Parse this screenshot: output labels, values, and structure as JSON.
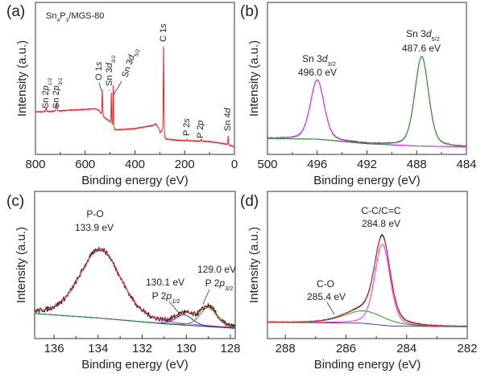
{
  "chart_data": [
    {
      "panel": "(a)",
      "type": "line",
      "inset_title": [
        {
          "t": "Sn"
        },
        {
          "t": "4",
          "s": 1
        },
        {
          "t": "P"
        },
        {
          "t": "3",
          "s": 1
        },
        {
          "t": "/MGS-80"
        }
      ],
      "xlabel": "Binding energy (eV)",
      "ylabel": "Intensity (a.u.)",
      "xlim": [
        800,
        0
      ],
      "xticks": [
        800,
        600,
        400,
        200,
        0
      ],
      "minor_step": 100,
      "grid": false,
      "series": [
        {
          "color": "#ff2020",
          "baseline": [
            [
              800,
              0.28
            ],
            [
              770,
              0.28
            ],
            [
              560,
              0.3
            ],
            [
              545,
              0.29
            ],
            [
              530,
              0.25
            ],
            [
              505,
              0.22
            ],
            [
              495,
              0.2
            ],
            [
              483,
              0.16
            ],
            [
              400,
              0.17
            ],
            [
              330,
              0.19
            ],
            [
              315,
              0.2
            ],
            [
              305,
              0.17
            ],
            [
              298,
              0.14
            ],
            [
              290,
              0.16
            ],
            [
              283,
              0.1
            ],
            [
              200,
              0.09
            ],
            [
              100,
              0.085
            ],
            [
              40,
              0.07
            ],
            [
              20,
              0.06
            ],
            [
              0,
              0.05
            ]
          ],
          "peaks": [
            {
              "center": 757,
              "height": 0.03,
              "fwhm": 4
            },
            {
              "center": 715,
              "height": 0.05,
              "fwhm": 4
            },
            {
              "center": 531,
              "height": 0.17,
              "fwhm": 3
            },
            {
              "center": 495,
              "height": 0.2,
              "fwhm": 2.5
            },
            {
              "center": 487,
              "height": 0.28,
              "fwhm": 2.5
            },
            {
              "center": 284.8,
              "height": 0.6,
              "fwhm": 3
            },
            {
              "center": 190,
              "height": 0.01,
              "fwhm": 4
            },
            {
              "center": 133,
              "height": 0.012,
              "fwhm": 4
            },
            {
              "center": 25,
              "height": 0.06,
              "fwhm": 3
            }
          ]
        }
      ],
      "annotations": [
        [
          {
            "t": "Sn 2"
          },
          {
            "t": "p",
            "i": 1
          },
          {
            "t": "1/2",
            "s": 1
          }
        ],
        [
          {
            "t": "Sn 2"
          },
          {
            "t": "p",
            "i": 1
          },
          {
            "t": "3/2",
            "s": 1
          }
        ],
        [
          {
            "t": "O 1"
          },
          {
            "t": "s",
            "i": 1
          }
        ],
        [
          {
            "t": "Sn 3"
          },
          {
            "t": "d",
            "i": 1
          },
          {
            "t": "3/2",
            "s": 1
          }
        ],
        [
          {
            "t": "Sn 3"
          },
          {
            "t": "d",
            "i": 1
          },
          {
            "t": "5/2",
            "s": 1
          }
        ],
        [
          {
            "t": "C 1"
          },
          {
            "t": "s",
            "i": 1
          }
        ],
        [
          {
            "t": "P 2"
          },
          {
            "t": "s",
            "i": 1
          }
        ],
        [
          {
            "t": "P 2"
          },
          {
            "t": "p",
            "i": 1
          }
        ],
        [
          {
            "t": "Sn 4"
          },
          {
            "t": "d",
            "i": 1
          }
        ]
      ]
    },
    {
      "panel": "(b)",
      "type": "line",
      "xlabel": "Binding energy (eV)",
      "ylabel": "Intensity (a.u.)",
      "xlim": [
        500,
        484
      ],
      "xticks": [
        500,
        496,
        492,
        488,
        484
      ],
      "minor_step": 2,
      "grid": false,
      "background": {
        "color": "#3a3aff",
        "points": [
          [
            500,
            0.105
          ],
          [
            496,
            0.1
          ],
          [
            492,
            0.07
          ],
          [
            488,
            0.055
          ],
          [
            484,
            0.05
          ]
        ]
      },
      "components": [
        {
          "center": 496.0,
          "height": 0.39,
          "fwhm": 1.3,
          "color": "#ff20ff"
        },
        {
          "center": 487.6,
          "height": 0.59,
          "fwhm": 1.3,
          "color": "#20a020"
        }
      ],
      "data_color": "#222222",
      "annotations": [
        [
          {
            "t": "Sn 3"
          },
          {
            "t": "d",
            "i": 1
          },
          {
            "t": "3/2",
            "s": 1
          }
        ],
        [
          {
            "t": "496.0 eV"
          }
        ],
        [
          {
            "t": "Sn 3"
          },
          {
            "t": "d",
            "i": 1
          },
          {
            "t": "5/2",
            "s": 1
          }
        ],
        [
          {
            "t": "487.6 eV"
          }
        ]
      ]
    },
    {
      "panel": "(c)",
      "type": "line",
      "xlabel": "Binding energy (eV)",
      "ylabel": "Intensity (a.u.)",
      "xlim": [
        136.88,
        127.78
      ],
      "xticks": [
        136,
        134,
        132,
        130,
        128
      ],
      "minor_step": 1,
      "grid": false,
      "background": {
        "color": "#2a2aa0",
        "points": [
          [
            136.88,
            0.17
          ],
          [
            134,
            0.14
          ],
          [
            131,
            0.1
          ],
          [
            127.78,
            0.07
          ]
        ]
      },
      "components": [
        {
          "center": 133.9,
          "height": 0.47,
          "fwhm": 2.2,
          "color": "#ff20ff"
        },
        {
          "center": 130.1,
          "height": 0.07,
          "fwhm": 0.9,
          "color": "#2a2aa0"
        },
        {
          "center": 129.0,
          "height": 0.13,
          "fwhm": 0.9,
          "color": "#20a020"
        }
      ],
      "envelope_color": "#ff2020",
      "data_color": "#222222",
      "annotations": [
        [
          {
            "t": "P-O"
          }
        ],
        [
          {
            "t": "133.9 eV"
          }
        ],
        [
          {
            "t": "130.1 eV"
          }
        ],
        [
          {
            "t": "P 2"
          },
          {
            "t": "p",
            "i": 1
          },
          {
            "t": "1/2",
            "s": 1
          }
        ],
        [
          {
            "t": "129.0 eV"
          }
        ],
        [
          {
            "t": "P 2"
          },
          {
            "t": "p",
            "i": 1
          },
          {
            "t": "3/2",
            "s": 1
          }
        ]
      ]
    },
    {
      "panel": "(d)",
      "type": "line",
      "xlabel": "Binding energy (eV)",
      "ylabel": "Intensity (a.u.)",
      "xlim": [
        288.59,
        282
      ],
      "xticks": [
        288,
        286,
        284,
        282
      ],
      "minor_step": 1,
      "grid": false,
      "background": {
        "color": "#3a3aff",
        "points": [
          [
            288.59,
            0.11
          ],
          [
            285.5,
            0.105
          ],
          [
            284.5,
            0.085
          ],
          [
            282,
            0.08
          ]
        ]
      },
      "components": [
        {
          "center": 284.8,
          "height": 0.55,
          "fwhm": 0.6,
          "color": "#ff20ff"
        },
        {
          "center": 285.4,
          "height": 0.085,
          "fwhm": 1.6,
          "color": "#20a020"
        }
      ],
      "envelope_color": "#ff2020",
      "data_color": "#222222",
      "annotations": [
        [
          {
            "t": "C-C/C=C"
          }
        ],
        [
          {
            "t": "284.8 eV"
          }
        ],
        [
          {
            "t": "C-O"
          }
        ],
        [
          {
            "t": "285.4 eV"
          }
        ]
      ]
    }
  ]
}
